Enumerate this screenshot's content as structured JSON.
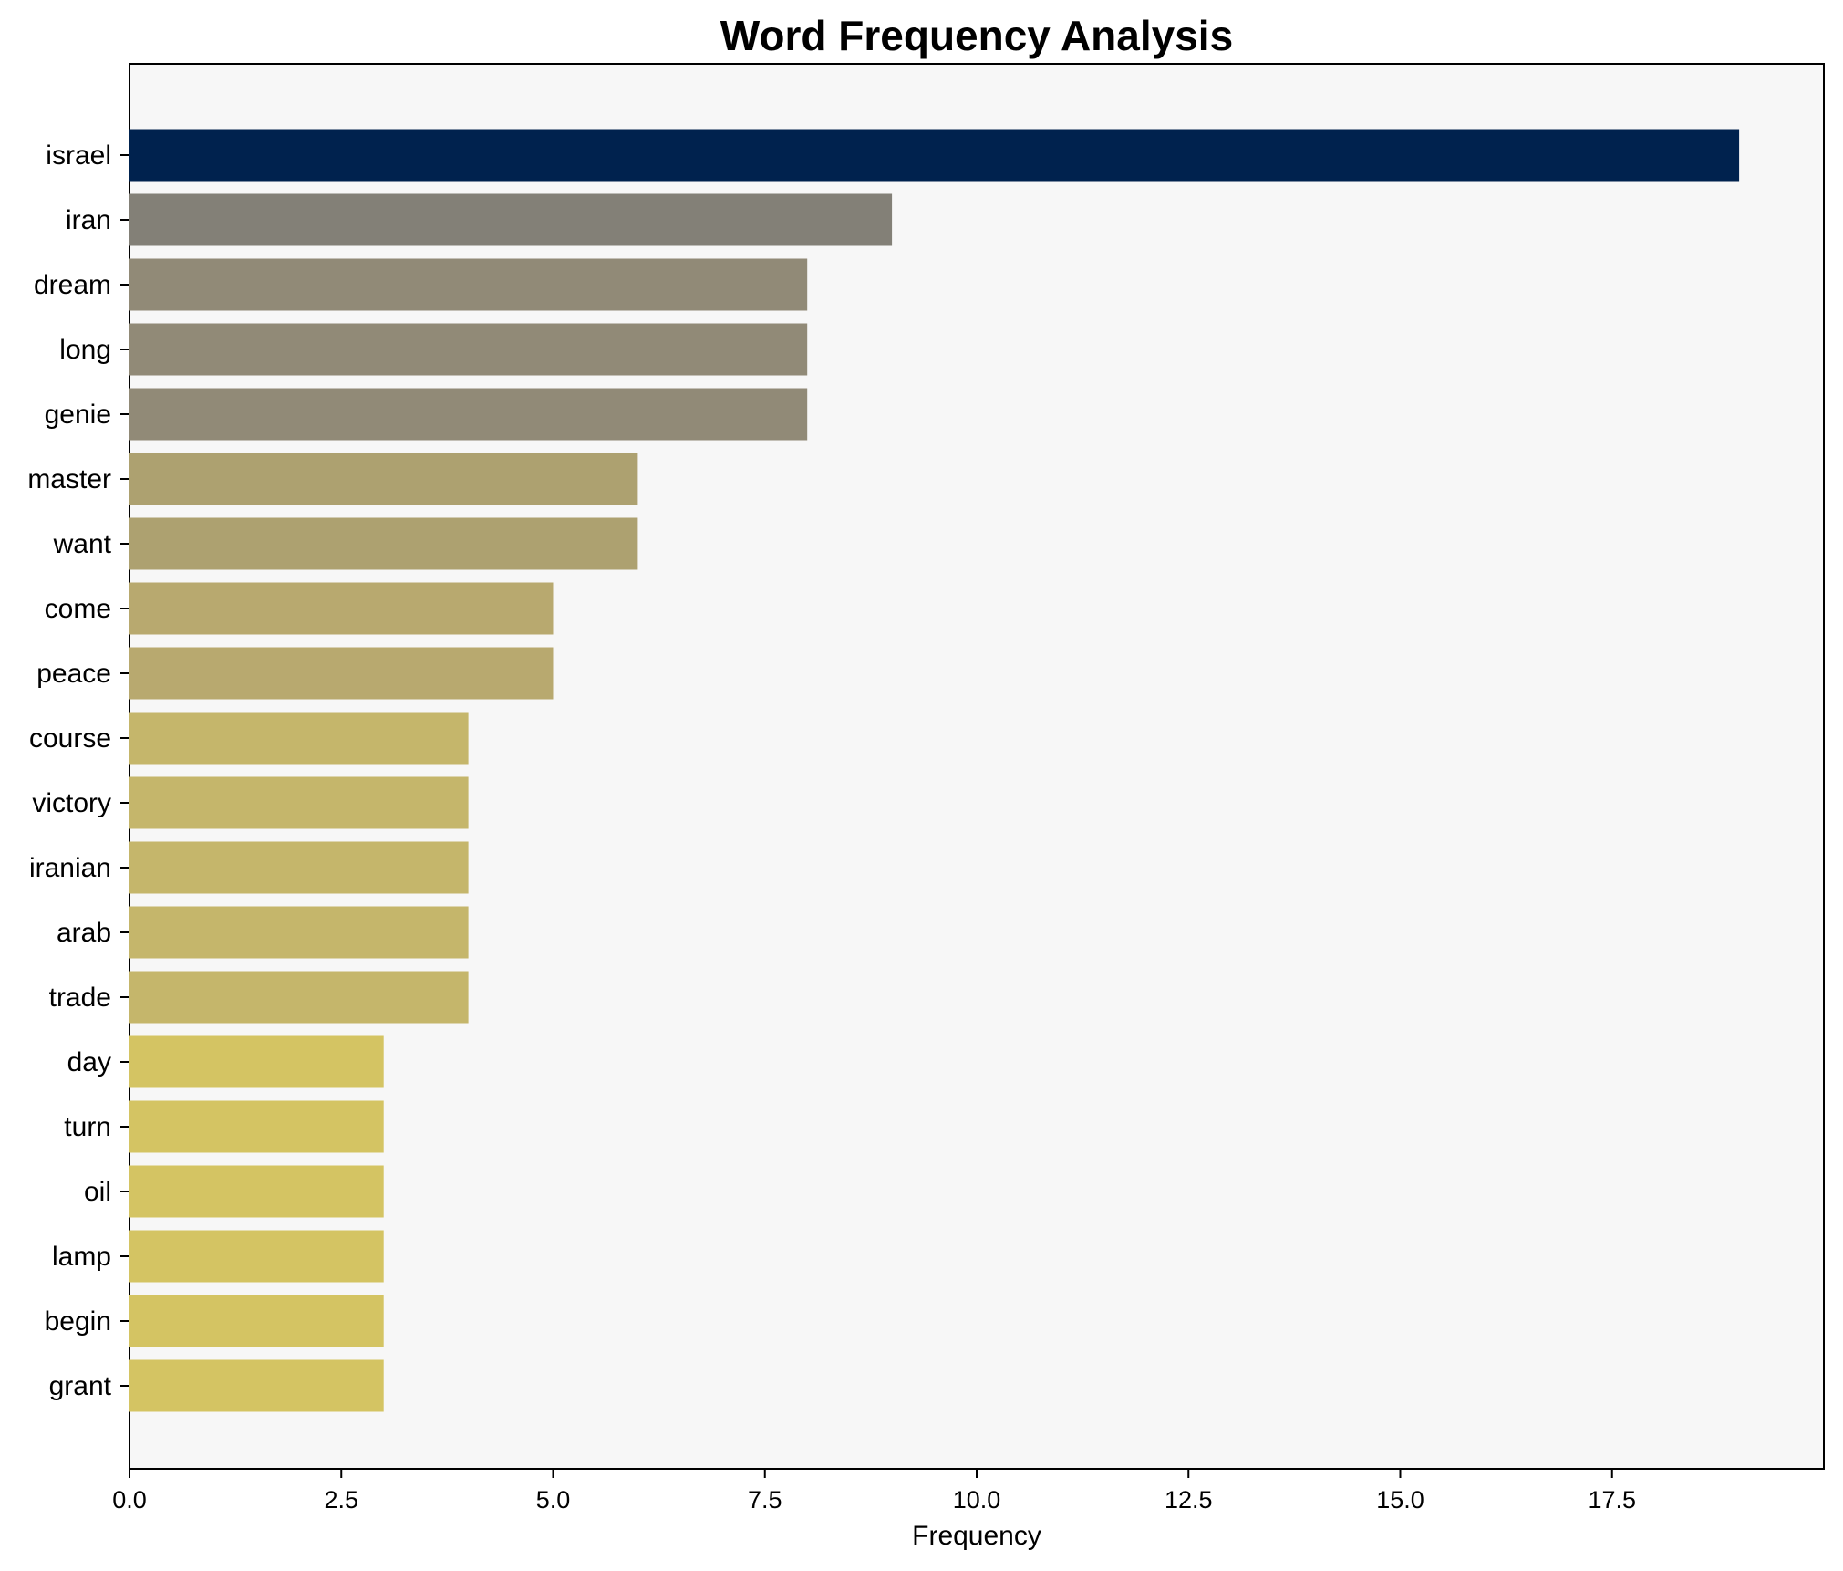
{
  "chart_data": {
    "type": "bar",
    "orientation": "horizontal",
    "title": "Word Frequency Analysis",
    "xlabel": "Frequency",
    "ylabel": "",
    "xlim": [
      0,
      20
    ],
    "xticks": [
      "0.0",
      "2.5",
      "5.0",
      "7.5",
      "10.0",
      "12.5",
      "15.0",
      "17.5"
    ],
    "grid": false,
    "background": "#f7f7f7",
    "categories": [
      "israel",
      "iran",
      "dream",
      "long",
      "genie",
      "master",
      "want",
      "come",
      "peace",
      "course",
      "victory",
      "iranian",
      "arab",
      "trade",
      "day",
      "turn",
      "oil",
      "lamp",
      "begin",
      "grant"
    ],
    "values": [
      19,
      9,
      8,
      8,
      8,
      6,
      6,
      5,
      5,
      4,
      4,
      4,
      4,
      4,
      3,
      3,
      3,
      3,
      3,
      3
    ],
    "colors": [
      "#00224e",
      "#838077",
      "#918a77",
      "#918a77",
      "#918a77",
      "#ada170",
      "#ada170",
      "#b8a96f",
      "#b8a96f",
      "#c5b66b",
      "#c5b66b",
      "#c5b66b",
      "#c5b66b",
      "#c5b66b",
      "#d4c463",
      "#d4c463",
      "#d4c463",
      "#d4c463",
      "#d4c463",
      "#d4c463"
    ]
  }
}
